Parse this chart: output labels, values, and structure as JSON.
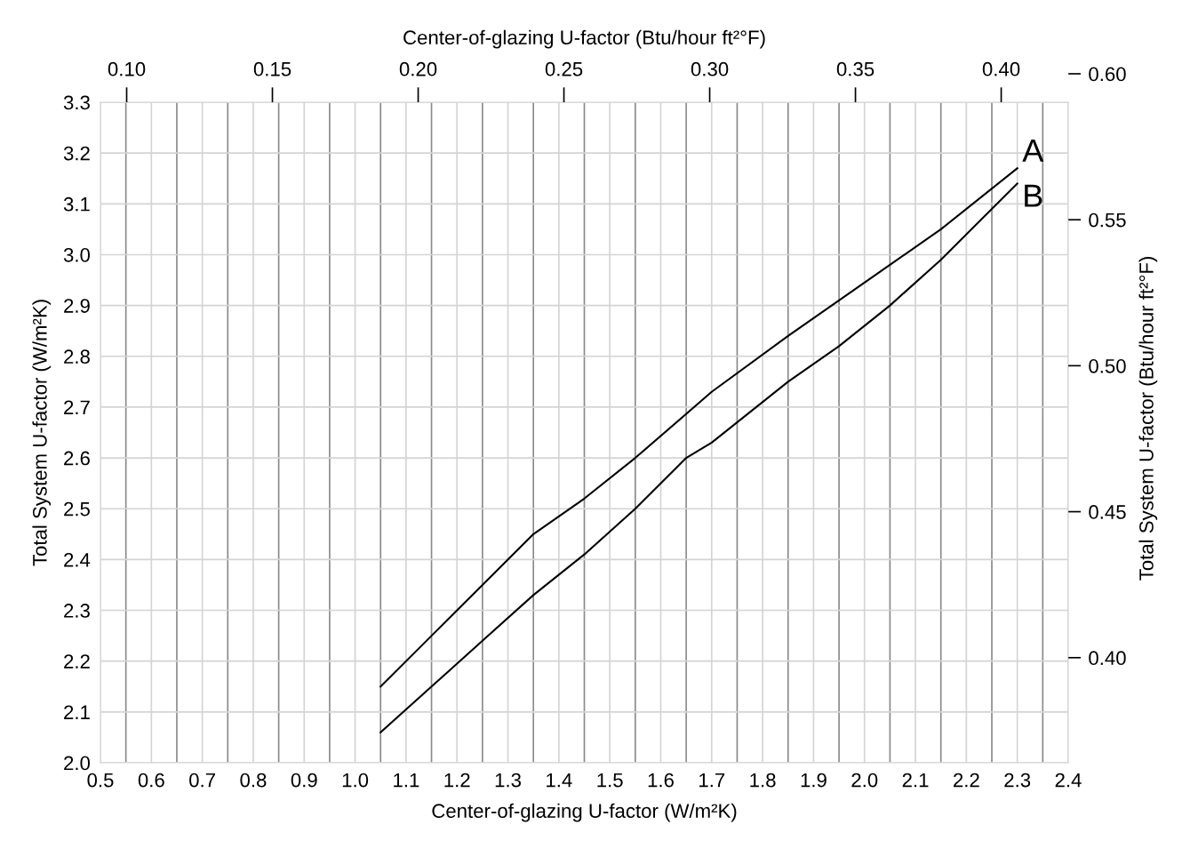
{
  "chart_data": {
    "type": "line",
    "xlabel": "Center-of-glazing U-factor (W/m²K)",
    "ylabel": "Total System U-factor (W/m²K)",
    "x2label": "Center-of-glazing U-factor (Btu/hour ft²°F)",
    "y2label": "Total System U-factor (Btu/hour ft²°F)",
    "xlim": [
      0.5,
      2.4
    ],
    "xticks": [
      {
        "value": 0.5,
        "label": "0.5"
      },
      {
        "value": 0.6,
        "label": "0.6"
      },
      {
        "value": 0.7,
        "label": "0.7"
      },
      {
        "value": 0.8,
        "label": "0.8"
      },
      {
        "value": 0.9,
        "label": "0.9"
      },
      {
        "value": 1.0,
        "label": "1.0"
      },
      {
        "value": 1.1,
        "label": "1.1"
      },
      {
        "value": 1.2,
        "label": "1.2"
      },
      {
        "value": 1.3,
        "label": "1.3"
      },
      {
        "value": 1.4,
        "label": "1.4"
      },
      {
        "value": 1.5,
        "label": "1.5"
      },
      {
        "value": 1.6,
        "label": "1.6"
      },
      {
        "value": 1.7,
        "label": "1.7"
      },
      {
        "value": 1.8,
        "label": "1.8"
      },
      {
        "value": 1.9,
        "label": "1.9"
      },
      {
        "value": 2.0,
        "label": "2.0"
      },
      {
        "value": 2.1,
        "label": "2.1"
      },
      {
        "value": 2.2,
        "label": "2.2"
      },
      {
        "value": 2.3,
        "label": "2.3"
      },
      {
        "value": 2.4,
        "label": "2.4"
      }
    ],
    "ylim": [
      2.0,
      3.3
    ],
    "yticks": [
      {
        "value": 2.0,
        "label": "2.0"
      },
      {
        "value": 2.1,
        "label": "2.1"
      },
      {
        "value": 2.2,
        "label": "2.2"
      },
      {
        "value": 2.3,
        "label": "2.3"
      },
      {
        "value": 2.4,
        "label": "2.4"
      },
      {
        "value": 2.5,
        "label": "2.5"
      },
      {
        "value": 2.6,
        "label": "2.6"
      },
      {
        "value": 2.7,
        "label": "2.7"
      },
      {
        "value": 2.8,
        "label": "2.8"
      },
      {
        "value": 2.9,
        "label": "2.9"
      },
      {
        "value": 3.0,
        "label": "3.0"
      },
      {
        "value": 3.1,
        "label": "3.1"
      },
      {
        "value": 3.2,
        "label": "3.2"
      },
      {
        "value": 3.3,
        "label": "3.3"
      }
    ],
    "x2lim": [
      0.091,
      0.423
    ],
    "x2ticks": [
      {
        "value": 0.1,
        "label": "0.10"
      },
      {
        "value": 0.15,
        "label": "0.15"
      },
      {
        "value": 0.2,
        "label": "0.20"
      },
      {
        "value": 0.25,
        "label": "0.25"
      },
      {
        "value": 0.3,
        "label": "0.30"
      },
      {
        "value": 0.35,
        "label": "0.35"
      },
      {
        "value": 0.4,
        "label": "0.40"
      }
    ],
    "y2lim": [
      0.364,
      0.6
    ],
    "y2ticks": [
      {
        "value": 0.4,
        "label": "0.40"
      },
      {
        "value": 0.45,
        "label": "0.45"
      },
      {
        "value": 0.5,
        "label": "0.50"
      },
      {
        "value": 0.55,
        "label": "0.55"
      },
      {
        "value": 0.6,
        "label": "0.60"
      }
    ],
    "grid": true,
    "legend": "top right",
    "marker": "none",
    "line_style": "solid",
    "series": [
      {
        "name": "A",
        "color": "#000000",
        "x": [
          1.05,
          1.15,
          1.25,
          1.35,
          1.45,
          1.55,
          1.7,
          1.85,
          1.95,
          2.05,
          2.15,
          2.3
        ],
        "values": [
          2.15,
          2.25,
          2.35,
          2.45,
          2.52,
          2.6,
          2.73,
          2.84,
          2.91,
          2.98,
          3.05,
          3.17
        ]
      },
      {
        "name": "B",
        "color": "#000000",
        "x": [
          1.05,
          1.15,
          1.25,
          1.35,
          1.45,
          1.55,
          1.65,
          1.7,
          1.85,
          1.95,
          2.05,
          2.15,
          2.3
        ],
        "values": [
          2.06,
          2.15,
          2.24,
          2.33,
          2.41,
          2.5,
          2.6,
          2.63,
          2.75,
          2.82,
          2.9,
          2.99,
          3.14
        ]
      }
    ]
  }
}
